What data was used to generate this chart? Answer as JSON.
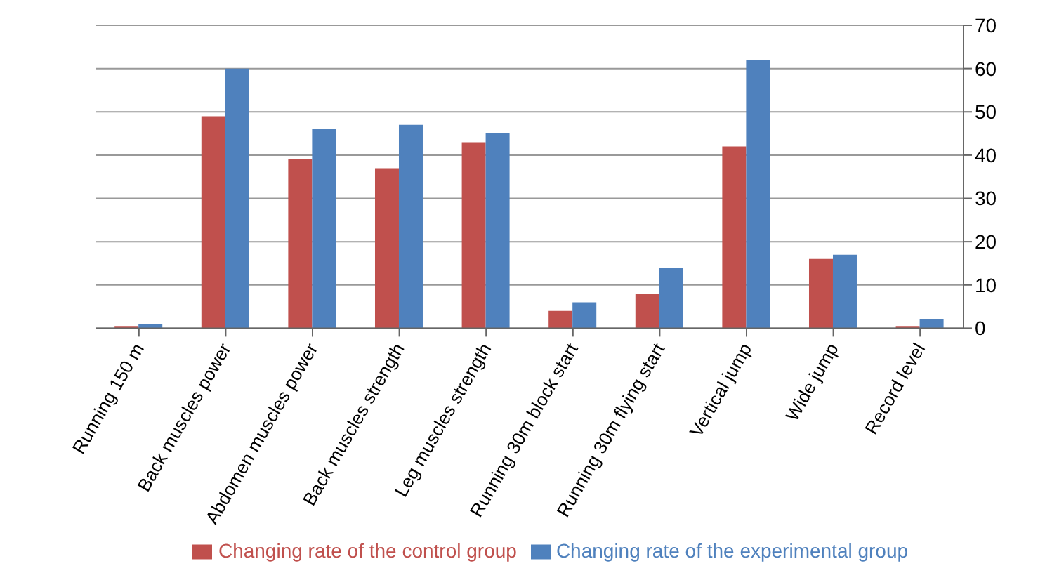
{
  "chart_data": {
    "type": "bar",
    "categories": [
      "Running 150 m",
      "Back muscles power",
      "Abdomen muscles power",
      "Back muscles strength",
      "Leg muscles strength",
      "Running 30m block start",
      "Running 30m flying start",
      "Vertical jump",
      "Wide jump",
      "Record level"
    ],
    "series": [
      {
        "name": "Changing rate of the control group",
        "color": "#c0504d",
        "values": [
          0.5,
          49,
          39,
          37,
          43,
          4,
          8,
          42,
          16,
          0.5
        ]
      },
      {
        "name": "Changing rate of the experimental group",
        "color": "#4f81bd",
        "values": [
          1,
          60,
          46,
          47,
          45,
          6,
          14,
          62,
          17,
          2
        ]
      }
    ],
    "ylim": [
      0,
      70
    ],
    "yticks": [
      0,
      10,
      20,
      30,
      40,
      50,
      60,
      70
    ],
    "grid": "y",
    "legend": "bottom"
  }
}
